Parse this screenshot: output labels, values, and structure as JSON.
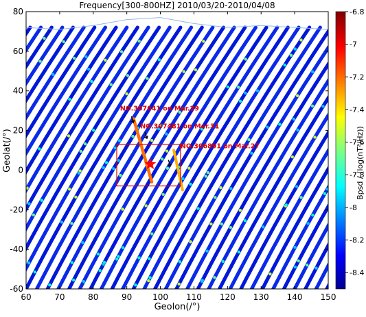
{
  "chart_data": {
    "type": "scatter",
    "title": "Frequency[300-800HZ] 2010/03/20-2010/04/08",
    "xlabel": "Geolon(/°)",
    "ylabel": "Geolat(/°)",
    "xlim": [
      60,
      150
    ],
    "ylim": [
      -60,
      80
    ],
    "xticks": [
      "60",
      "70",
      "80",
      "90",
      "100",
      "110",
      "120",
      "130",
      "140",
      "150"
    ],
    "yticks": [
      "-60",
      "-40",
      "-20",
      "0",
      "20",
      "40",
      "60",
      "80"
    ],
    "colorbar": {
      "label": "Bpsd / (log(nT²/Hz))",
      "range": [
        -8.5,
        -6.8
      ],
      "ticks": [
        "-6.8",
        "-7",
        "-7.2",
        "-7.4",
        "-7.6",
        "-7.8",
        "-8",
        "-8.2",
        "-8.4"
      ],
      "colormap": "jet"
    },
    "marker": {
      "name": "epicenter-star",
      "lon": 97,
      "lat": 3,
      "color": "#ff0000"
    },
    "box": {
      "lon": [
        87,
        106
      ],
      "lat": [
        -8,
        13
      ],
      "color": "#dd0000"
    },
    "annotations": [
      {
        "text": "NO.307641 on Mar.29",
        "lon": 88,
        "lat": 30
      },
      {
        "text": "NO.307481 on Mar.31",
        "lon": 94,
        "lat": 21
      },
      {
        "text": "NO.306891 on Mar.27",
        "lon": 106,
        "lat": 11
      }
    ],
    "arrows": [
      {
        "lon": 92,
        "lat": 24
      },
      {
        "lon": 96,
        "lat": 16
      },
      {
        "lon": 103,
        "lat": 2
      }
    ],
    "grid": false
  }
}
